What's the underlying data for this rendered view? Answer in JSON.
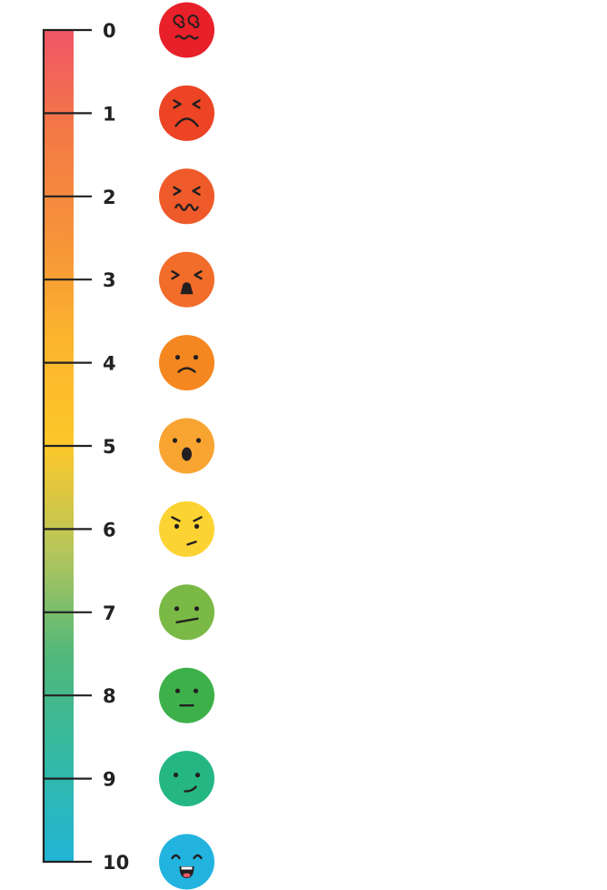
{
  "scale": {
    "gradient": [
      "#f05567",
      "#f47a45",
      "#f6933a",
      "#fbb52c",
      "#fdc72a",
      "#b6c65a",
      "#52b879",
      "#33b9a4",
      "#22b5d6"
    ],
    "levels": [
      {
        "label": "0",
        "face": "dizzy-face-icon",
        "color": "#e8202a"
      },
      {
        "label": "1",
        "face": "angry-face-icon",
        "color": "#ec4424"
      },
      {
        "label": "2",
        "face": "anguished-face-icon",
        "color": "#ef5a2a"
      },
      {
        "label": "3",
        "face": "distressed-face-icon",
        "color": "#f26c2a"
      },
      {
        "label": "4",
        "face": "sad-face-icon",
        "color": "#f4871f"
      },
      {
        "label": "5",
        "face": "surprised-face-icon",
        "color": "#f8a431"
      },
      {
        "label": "6",
        "face": "skeptical-face-icon",
        "color": "#fcd332"
      },
      {
        "label": "7",
        "face": "neutral-face-icon",
        "color": "#7ab945"
      },
      {
        "label": "8",
        "face": "calm-face-icon",
        "color": "#3db04a"
      },
      {
        "label": "9",
        "face": "content-face-icon",
        "color": "#25b783"
      },
      {
        "label": "10",
        "face": "happy-face-icon",
        "color": "#22b3df"
      }
    ]
  }
}
